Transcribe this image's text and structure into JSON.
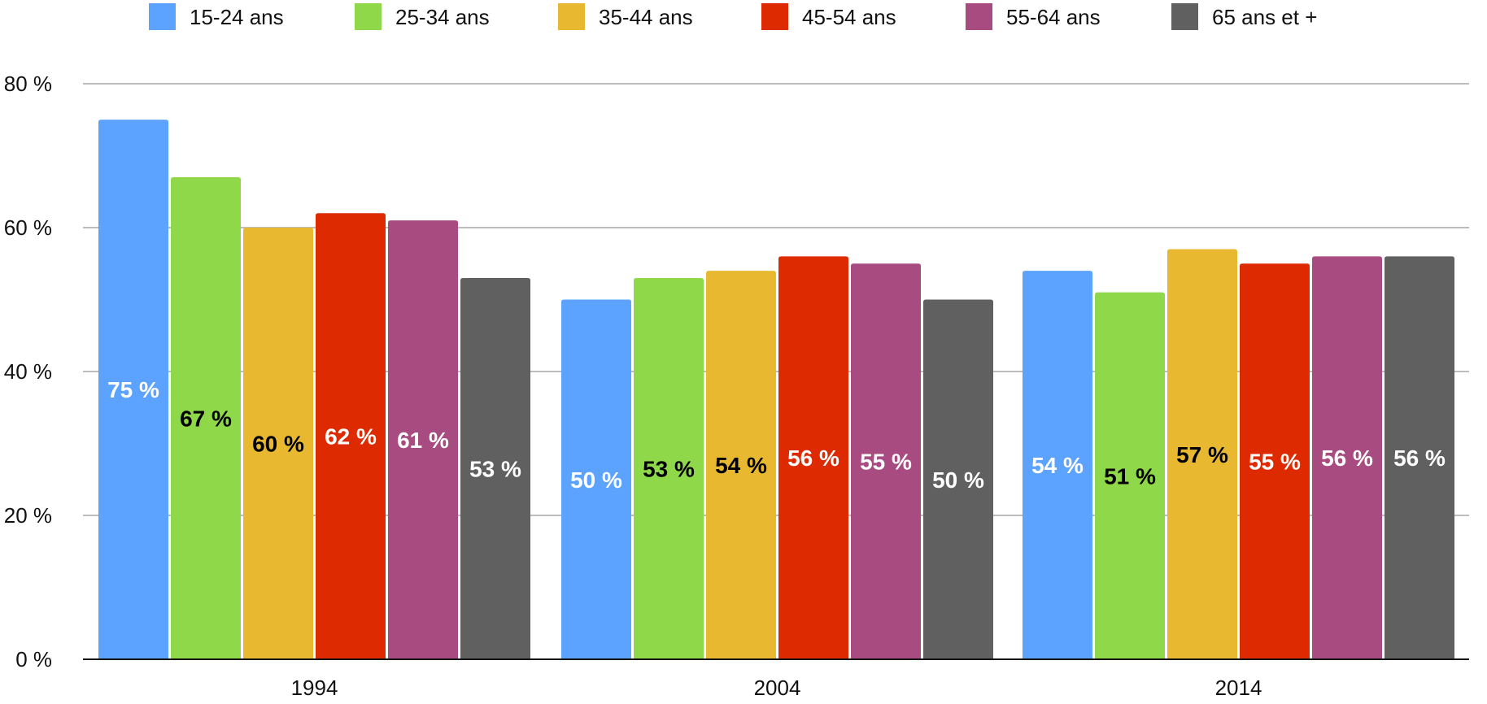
{
  "chart_data": {
    "type": "bar",
    "categories": [
      "1994",
      "2004",
      "2014"
    ],
    "series": [
      {
        "name": "15-24 ans",
        "color": "#5BA3FF",
        "label_color": "#FFFFFF",
        "values": [
          75,
          50,
          54
        ],
        "labels": [
          "75 %",
          "50 %",
          "54 %"
        ]
      },
      {
        "name": "25-34 ans",
        "color": "#8FD84A",
        "label_color": "#000000",
        "values": [
          67,
          53,
          51
        ],
        "labels": [
          "67 %",
          "53 %",
          "51 %"
        ]
      },
      {
        "name": "35-44 ans",
        "color": "#E8B830",
        "label_color": "#000000",
        "values": [
          60,
          54,
          57
        ],
        "labels": [
          "60 %",
          "54 %",
          "57 %"
        ]
      },
      {
        "name": "45-54 ans",
        "color": "#DD2A00",
        "label_color": "#FFFFFF",
        "values": [
          62,
          56,
          55
        ],
        "labels": [
          "62 %",
          "56 %",
          "55 %"
        ]
      },
      {
        "name": "55-64 ans",
        "color": "#A74B80",
        "label_color": "#FFFFFF",
        "values": [
          61,
          55,
          56
        ],
        "labels": [
          "61 %",
          "55 %",
          "56 %"
        ]
      },
      {
        "name": "65 ans et +",
        "color": "#606060",
        "label_color": "#FFFFFF",
        "values": [
          53,
          50,
          56
        ],
        "labels": [
          "53 %",
          "50 %",
          "56 %"
        ]
      }
    ],
    "yticks": [
      "0 %",
      "20 %",
      "40 %",
      "60 %",
      "80 %"
    ],
    "ylim": [
      0,
      80
    ],
    "grid": true,
    "legend_position": "top",
    "title": "",
    "xlabel": "",
    "ylabel": ""
  }
}
